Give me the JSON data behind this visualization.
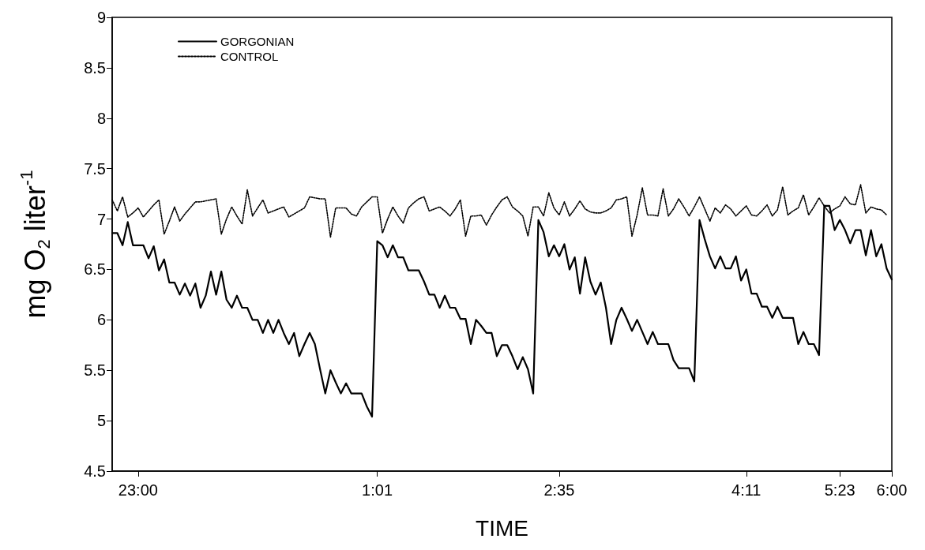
{
  "chart_data": {
    "type": "line",
    "xlabel": "TIME",
    "ylabel": "mg O$_{2}$ liter$^{-1}$",
    "categories": [
      null,
      null,
      null,
      null,
      null,
      "23:00",
      null,
      null,
      null,
      null,
      null,
      null,
      null,
      null,
      null,
      null,
      null,
      null,
      null,
      null,
      null,
      null,
      null,
      null,
      null,
      null,
      null,
      null,
      null,
      null,
      null,
      null,
      null,
      null,
      null,
      null,
      null,
      null,
      null,
      null,
      null,
      null,
      null,
      null,
      null,
      null,
      null,
      null,
      null,
      null,
      null,
      "1:01",
      null,
      null,
      null,
      null,
      null,
      null,
      null,
      null,
      null,
      null,
      null,
      null,
      null,
      null,
      null,
      null,
      null,
      null,
      null,
      null,
      null,
      null,
      null,
      null,
      null,
      null,
      null,
      null,
      null,
      null,
      null,
      null,
      null,
      null,
      "2:35",
      null,
      null,
      null,
      null,
      null,
      null,
      null,
      null,
      null,
      null,
      null,
      null,
      null,
      null,
      null,
      null,
      null,
      null,
      null,
      null,
      null,
      null,
      null,
      null,
      null,
      null,
      null,
      null,
      null,
      null,
      null,
      null,
      null,
      null,
      null,
      "4:11",
      null,
      null,
      null,
      null,
      null,
      null,
      null,
      null,
      null,
      null,
      null,
      null,
      null,
      null,
      null,
      null,
      null,
      "5:23",
      null,
      null,
      null,
      null,
      null,
      null,
      null,
      null,
      null,
      "6:00"
    ],
    "ylim": [
      4.5,
      9
    ],
    "yticks": [
      4.5,
      5,
      5.5,
      6,
      6.5,
      7,
      7.5,
      8,
      8.5,
      9
    ],
    "grid": false,
    "legend": "top left",
    "series": [
      {
        "name": "GORGONIAN",
        "color": "#000000",
        "line_style": "solid",
        "values": [
          6.86,
          6.86,
          6.74,
          6.97,
          6.74,
          6.74,
          6.74,
          6.61,
          6.73,
          6.49,
          6.6,
          6.37,
          6.37,
          6.25,
          6.36,
          6.24,
          6.36,
          6.12,
          6.24,
          6.48,
          6.25,
          6.48,
          6.2,
          6.12,
          6.24,
          6.12,
          6.12,
          6,
          6,
          5.87,
          6,
          5.87,
          6,
          5.87,
          5.76,
          5.87,
          5.64,
          5.76,
          5.87,
          5.76,
          5.51,
          5.27,
          5.5,
          5.38,
          5.27,
          5.37,
          5.27,
          5.27,
          5.27,
          5.14,
          5.04,
          6.78,
          6.74,
          6.62,
          6.74,
          6.62,
          6.62,
          6.49,
          6.49,
          6.49,
          6.38,
          6.25,
          6.25,
          6.12,
          6.24,
          6.12,
          6.12,
          6.01,
          6.01,
          5.76,
          6,
          5.94,
          5.87,
          5.87,
          5.64,
          5.75,
          5.75,
          5.64,
          5.51,
          5.63,
          5.51,
          5.27,
          6.99,
          6.87,
          6.63,
          6.74,
          6.63,
          6.75,
          6.5,
          6.62,
          6.26,
          6.62,
          6.38,
          6.25,
          6.37,
          6.12,
          5.76,
          6,
          6.12,
          6.01,
          5.89,
          6,
          5.88,
          5.76,
          5.88,
          5.76,
          5.76,
          5.76,
          5.6,
          5.52,
          5.52,
          5.52,
          5.39,
          6.99,
          6.8,
          6.63,
          6.51,
          6.63,
          6.51,
          6.51,
          6.63,
          6.39,
          6.5,
          6.26,
          6.26,
          6.13,
          6.13,
          6.02,
          6.13,
          6.02,
          6.02,
          6.02,
          5.76,
          5.88,
          5.76,
          5.76,
          5.65,
          7.13,
          7.13,
          6.89,
          6.99,
          6.89,
          6.76,
          6.89,
          6.89,
          6.64,
          6.89,
          6.63,
          6.75,
          6.51,
          6.4
        ]
      },
      {
        "name": "CONTROL",
        "color": "#000000",
        "line_style": "dotted",
        "values": [
          7.19,
          7.08,
          7.22,
          7.02,
          7.06,
          7.11,
          7.02,
          7.08,
          7.14,
          7.19,
          6.85,
          6.98,
          7.12,
          6.98,
          7.05,
          7.11,
          7.17,
          7.17,
          7.18,
          7.19,
          7.2,
          6.85,
          7,
          7.12,
          7.03,
          6.95,
          7.29,
          7.03,
          7.11,
          7.19,
          7.06,
          7.08,
          7.1,
          7.12,
          7.02,
          7.05,
          7.08,
          7.11,
          7.22,
          7.21,
          7.2,
          7.2,
          6.82,
          7.11,
          7.11,
          7.11,
          7.05,
          7.03,
          7.12,
          7.17,
          7.22,
          7.22,
          6.86,
          7,
          7.12,
          7.03,
          6.96,
          7.11,
          7.16,
          7.2,
          7.22,
          7.08,
          7.1,
          7.12,
          7.08,
          7.03,
          7.1,
          7.19,
          6.83,
          7.03,
          7.03,
          7.04,
          6.94,
          7.04,
          7.12,
          7.19,
          7.22,
          7.12,
          7.08,
          7.03,
          6.83,
          7.12,
          7.12,
          7.03,
          7.26,
          7.11,
          7.04,
          7.17,
          7.03,
          7.1,
          7.18,
          7.1,
          7.07,
          7.06,
          7.06,
          7.08,
          7.11,
          7.19,
          7.2,
          7.22,
          6.83,
          7.04,
          7.31,
          7.04,
          7.04,
          7.03,
          7.3,
          7.03,
          7.1,
          7.2,
          7.12,
          7.03,
          7.12,
          7.22,
          7.1,
          6.98,
          7.11,
          7.06,
          7.14,
          7.1,
          7.03,
          7.08,
          7.13,
          7.04,
          7.03,
          7.08,
          7.14,
          7.03,
          7.09,
          7.32,
          7.04,
          7.08,
          7.11,
          7.24,
          7.04,
          7.12,
          7.21,
          7.13,
          7.06,
          7.1,
          7.13,
          7.22,
          7.15,
          7.14,
          7.34,
          7.06,
          7.12,
          7.1,
          7.09,
          7.04,
          null
        ]
      }
    ]
  }
}
